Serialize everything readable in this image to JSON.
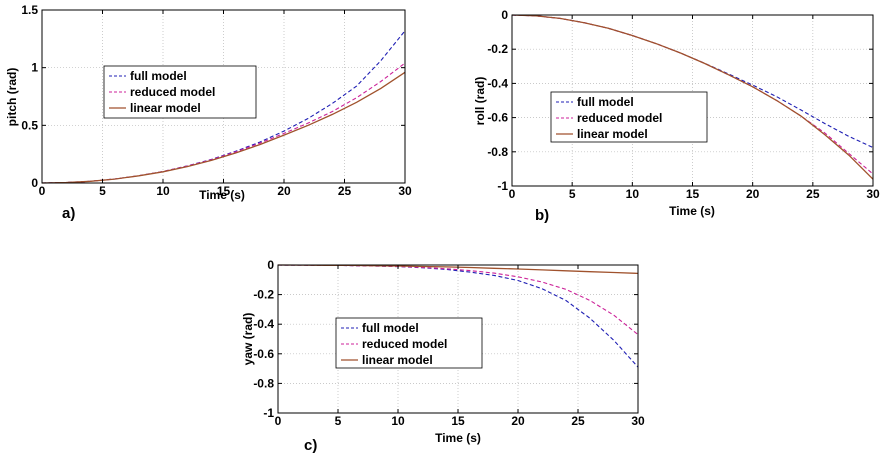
{
  "chart_data": [
    {
      "id": "a",
      "type": "line",
      "panel_label": "a)",
      "xlabel": "Time (s)",
      "ylabel": "pitch (rad)",
      "xlim": [
        0,
        30
      ],
      "ylim": [
        0,
        1.5
      ],
      "xticks": [
        0,
        5,
        10,
        15,
        20,
        25,
        30
      ],
      "yticks": [
        0,
        0.5,
        1,
        1.5
      ],
      "ytick_labels": [
        "0",
        "0.5",
        "1",
        "1.5"
      ],
      "grid": true,
      "legend_position": "center-left",
      "series": [
        {
          "name": "full model",
          "style": "dashed",
          "color": "#1f1fb4",
          "x": [
            0,
            2,
            4,
            6,
            8,
            10,
            12,
            14,
            16,
            18,
            20,
            22,
            24,
            26,
            28,
            30
          ],
          "y": [
            0,
            0.004,
            0.015,
            0.035,
            0.063,
            0.1,
            0.148,
            0.205,
            0.275,
            0.355,
            0.45,
            0.56,
            0.69,
            0.84,
            1.06,
            1.32
          ]
        },
        {
          "name": "reduced model",
          "style": "dashed",
          "color": "#cc2299",
          "x": [
            0,
            2,
            4,
            6,
            8,
            10,
            12,
            14,
            16,
            18,
            20,
            22,
            24,
            26,
            28,
            30
          ],
          "y": [
            0,
            0.004,
            0.015,
            0.035,
            0.063,
            0.1,
            0.147,
            0.202,
            0.27,
            0.345,
            0.43,
            0.52,
            0.62,
            0.74,
            0.88,
            1.04
          ]
        },
        {
          "name": "linear model",
          "style": "solid",
          "color": "#a0522d",
          "x": [
            0,
            2,
            4,
            6,
            8,
            10,
            12,
            14,
            16,
            18,
            20,
            22,
            24,
            26,
            28,
            30
          ],
          "y": [
            0,
            0.004,
            0.015,
            0.034,
            0.062,
            0.097,
            0.142,
            0.196,
            0.26,
            0.333,
            0.415,
            0.5,
            0.595,
            0.7,
            0.82,
            0.96
          ]
        }
      ]
    },
    {
      "id": "b",
      "type": "line",
      "panel_label": "b)",
      "xlabel": "Time (s)",
      "ylabel": "roll (rad)",
      "xlim": [
        0,
        30
      ],
      "ylim": [
        -1,
        0
      ],
      "xticks": [
        0,
        5,
        10,
        15,
        20,
        25,
        30
      ],
      "yticks": [
        -1,
        -0.8,
        -0.6,
        -0.4,
        -0.2,
        0
      ],
      "ytick_labels": [
        "-1",
        "-0.8",
        "-0.6",
        "-0.4",
        "-0.2",
        "0"
      ],
      "grid": true,
      "legend_position": "center-left",
      "series": [
        {
          "name": "full model",
          "style": "dashed",
          "color": "#1f1fb4",
          "x": [
            0,
            2,
            4,
            6,
            8,
            10,
            12,
            14,
            16,
            18,
            20,
            22,
            24,
            26,
            28,
            30
          ],
          "y": [
            0,
            -0.005,
            -0.02,
            -0.045,
            -0.078,
            -0.12,
            -0.168,
            -0.222,
            -0.282,
            -0.345,
            -0.41,
            -0.478,
            -0.555,
            -0.635,
            -0.71,
            -0.775
          ]
        },
        {
          "name": "reduced model",
          "style": "dashed",
          "color": "#cc2299",
          "x": [
            0,
            2,
            4,
            6,
            8,
            10,
            12,
            14,
            16,
            18,
            20,
            22,
            24,
            26,
            28,
            30
          ],
          "y": [
            0,
            -0.005,
            -0.02,
            -0.045,
            -0.078,
            -0.12,
            -0.168,
            -0.222,
            -0.283,
            -0.35,
            -0.42,
            -0.5,
            -0.59,
            -0.69,
            -0.81,
            -0.93
          ]
        },
        {
          "name": "linear model",
          "style": "solid",
          "color": "#a0522d",
          "x": [
            0,
            2,
            4,
            6,
            8,
            10,
            12,
            14,
            16,
            18,
            20,
            22,
            24,
            26,
            28,
            30
          ],
          "y": [
            0,
            -0.005,
            -0.02,
            -0.045,
            -0.078,
            -0.12,
            -0.168,
            -0.222,
            -0.283,
            -0.35,
            -0.42,
            -0.5,
            -0.59,
            -0.7,
            -0.82,
            -0.96
          ]
        }
      ]
    },
    {
      "id": "c",
      "type": "line",
      "panel_label": "c)",
      "xlabel": "Time (s)",
      "ylabel": "yaw (rad)",
      "xlim": [
        0,
        30
      ],
      "ylim": [
        -1,
        0
      ],
      "xticks": [
        0,
        5,
        10,
        15,
        20,
        25,
        30
      ],
      "yticks": [
        -1,
        -0.8,
        -0.6,
        -0.4,
        -0.2,
        0
      ],
      "ytick_labels": [
        "-1",
        "-0.8",
        "-0.6",
        "-0.4",
        "-0.2",
        "0"
      ],
      "grid": true,
      "legend_position": "center-left",
      "series": [
        {
          "name": "full model",
          "style": "dashed",
          "color": "#1f1fb4",
          "x": [
            0,
            2,
            4,
            6,
            8,
            10,
            12,
            14,
            16,
            18,
            20,
            22,
            24,
            26,
            28,
            30
          ],
          "y": [
            0,
            -0.001,
            -0.002,
            -0.004,
            -0.007,
            -0.011,
            -0.018,
            -0.03,
            -0.048,
            -0.07,
            -0.105,
            -0.16,
            -0.24,
            -0.36,
            -0.51,
            -0.69
          ]
        },
        {
          "name": "reduced model",
          "style": "dashed",
          "color": "#cc2299",
          "x": [
            0,
            2,
            4,
            6,
            8,
            10,
            12,
            14,
            16,
            18,
            20,
            22,
            24,
            26,
            28,
            30
          ],
          "y": [
            0,
            -0.001,
            -0.002,
            -0.004,
            -0.007,
            -0.01,
            -0.016,
            -0.025,
            -0.038,
            -0.055,
            -0.08,
            -0.115,
            -0.165,
            -0.24,
            -0.34,
            -0.47
          ]
        },
        {
          "name": "linear model",
          "style": "solid",
          "color": "#a0522d",
          "x": [
            0,
            2,
            4,
            6,
            8,
            10,
            12,
            14,
            16,
            18,
            20,
            22,
            24,
            26,
            28,
            30
          ],
          "y": [
            0,
            -0.001,
            -0.002,
            -0.003,
            -0.005,
            -0.007,
            -0.01,
            -0.013,
            -0.017,
            -0.022,
            -0.027,
            -0.033,
            -0.039,
            -0.045,
            -0.051,
            -0.057
          ]
        }
      ]
    }
  ]
}
